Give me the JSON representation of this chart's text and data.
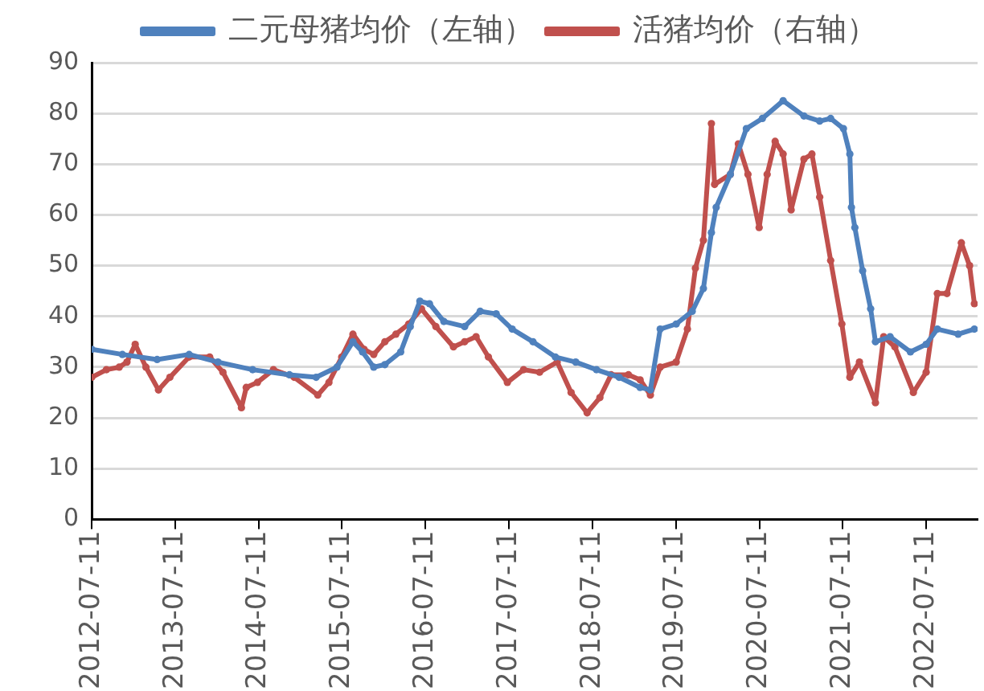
{
  "chart_data": {
    "type": "line",
    "legend": "top",
    "grid": "y",
    "marker": "circle",
    "line_style": "solid",
    "xlim": [
      "2012-07-11",
      "2023-02-21"
    ],
    "xticks": [
      "2012-07-11",
      "2013-07-11",
      "2014-07-11",
      "2015-07-11",
      "2016-07-11",
      "2017-07-11",
      "2018-07-11",
      "2019-07-11",
      "2020-07-11",
      "2021-07-11",
      "2022-07-11"
    ],
    "ylim": [
      0,
      90
    ],
    "yticks": [
      0,
      10,
      20,
      30,
      40,
      50,
      60,
      70,
      80,
      90
    ],
    "series": [
      {
        "name": "二元母猪均价（左轴）",
        "color": "#4f81bd",
        "x": [
          "2012-07-11",
          "2012-11-22",
          "2013-04-23",
          "2013-09-10",
          "2014-01-14",
          "2014-06-15",
          "2014-11-23",
          "2015-03-20",
          "2015-06-19",
          "2015-08-28",
          "2015-10-09",
          "2015-11-27",
          "2016-01-15",
          "2016-03-24",
          "2016-05-05",
          "2016-06-16",
          "2016-07-28",
          "2016-09-29",
          "2016-12-29",
          "2017-03-07",
          "2017-05-16",
          "2017-07-25",
          "2017-10-24",
          "2018-01-30",
          "2018-04-29",
          "2018-07-29",
          "2018-11-05",
          "2019-02-05",
          "2019-03-22",
          "2019-05-04",
          "2019-07-13",
          "2019-09-21",
          "2019-11-09",
          "2019-12-14",
          "2020-01-04",
          "2020-03-06",
          "2020-05-15",
          "2020-07-24",
          "2020-10-23",
          "2021-01-22",
          "2021-04-01",
          "2021-05-19",
          "2021-07-14",
          "2021-08-11",
          "2021-08-18",
          "2021-09-02",
          "2021-10-06",
          "2021-11-10",
          "2021-12-01",
          "2022-02-03",
          "2022-05-03",
          "2022-07-11",
          "2022-08-29",
          "2022-11-28",
          "2023-02-07"
        ],
        "values": [
          33.5,
          32.5,
          31.5,
          32.5,
          31,
          29.5,
          28.5,
          28,
          30,
          35,
          33,
          30,
          30.5,
          33,
          38,
          43,
          42.5,
          39,
          38,
          41,
          40.5,
          37.5,
          35,
          32,
          31,
          29.5,
          28,
          26,
          25.5,
          37.5,
          38.5,
          41,
          45.5,
          56.5,
          61.5,
          68,
          77,
          79,
          82.5,
          79.5,
          78.5,
          79,
          77,
          72,
          61.5,
          57.5,
          49,
          41.5,
          35,
          36,
          33,
          34.5,
          37.5,
          36.5,
          37.5
        ]
      },
      {
        "name": "活猪均价（右轴）",
        "color": "#c0504d",
        "x": [
          "2012-07-11",
          "2012-09-13",
          "2012-11-08",
          "2012-12-12",
          "2013-01-17",
          "2013-03-05",
          "2013-04-29",
          "2013-06-18",
          "2013-09-10",
          "2013-12-09",
          "2014-02-05",
          "2014-04-27",
          "2014-05-18",
          "2014-07-06",
          "2014-09-14",
          "2014-12-14",
          "2015-03-27",
          "2015-05-15",
          "2015-07-10",
          "2015-08-28",
          "2015-10-16",
          "2015-11-27",
          "2016-01-15",
          "2016-03-03",
          "2016-04-28",
          "2016-06-23",
          "2016-08-25",
          "2016-11-10",
          "2016-12-29",
          "2017-02-17",
          "2017-04-12",
          "2017-07-04",
          "2017-09-13",
          "2017-11-22",
          "2018-02-07",
          "2018-04-09",
          "2018-06-18",
          "2018-08-13",
          "2018-10-01",
          "2018-12-16",
          "2019-02-05",
          "2019-03-22",
          "2019-05-04",
          "2019-07-13",
          "2019-08-31",
          "2019-10-05",
          "2019-11-09",
          "2019-12-14",
          "2019-12-28",
          "2020-03-06",
          "2020-04-10",
          "2020-05-22",
          "2020-07-10",
          "2020-08-14",
          "2020-09-18",
          "2020-10-23",
          "2020-11-27",
          "2021-01-22",
          "2021-02-26",
          "2021-04-01",
          "2021-05-19",
          "2021-07-07",
          "2021-08-11",
          "2021-09-22",
          "2021-12-01",
          "2022-01-06",
          "2022-02-24",
          "2022-05-16",
          "2022-07-11",
          "2022-08-29",
          "2022-10-10",
          "2022-12-12",
          "2023-01-17",
          "2023-02-07"
        ],
        "values": [
          28,
          29.5,
          30,
          31,
          34.5,
          30,
          25.5,
          28,
          32,
          32,
          29,
          22,
          26,
          27,
          29.5,
          28,
          24.5,
          27,
          32,
          36.5,
          33.5,
          32.5,
          35,
          36.5,
          38.5,
          41.5,
          38,
          34,
          35,
          36,
          32,
          27,
          29.5,
          29,
          31,
          25,
          21,
          24,
          28.5,
          28.5,
          27.5,
          24.5,
          30,
          31,
          37.5,
          49.5,
          55,
          78,
          66,
          68,
          74,
          68,
          57.5,
          68,
          74.5,
          72,
          61,
          71,
          72,
          63.5,
          51,
          38.5,
          28,
          31,
          23,
          36,
          34,
          25,
          29,
          44.5,
          44.5,
          54.5,
          50,
          42.5
        ]
      }
    ]
  }
}
